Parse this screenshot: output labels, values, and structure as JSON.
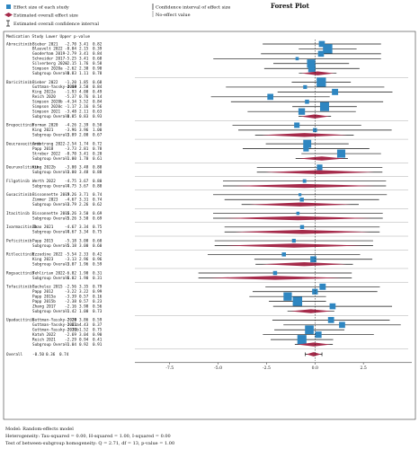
{
  "chart_data": {
    "type": "forest",
    "title": "Forest Plot",
    "legend": {
      "effect_size": "Effect size of each study",
      "overall_effect": "Estimated overall effect size",
      "overall_ci": "Estimated overall confidence interval",
      "ci": "Confidence interval of effect size",
      "no_effect": "No-effect value"
    },
    "header": "Medication  Study  Lower Upper p-value",
    "x_ticks": [
      -7.5,
      -5.0,
      -2.5,
      0.0,
      2.5
    ],
    "x_tick_labels": [
      "-7.5",
      "-5.0",
      "-2.5",
      "0.0",
      "2.5"
    ],
    "xlim": [
      -9.3,
      5.0
    ],
    "groups": [
      {
        "medication": "Abrocitinib",
        "rows": [
          {
            "study": "Bieber 2021",
            "lower": -2.7,
            "upper": 3.41,
            "p": 0.82
          },
          {
            "study": "Blauvelt 2022",
            "lower": -0.84,
            "upper": 2.15,
            "p": 0.39
          },
          {
            "study": "Gooderham 2019",
            "lower": -2.79,
            "upper": 3.41,
            "p": 0.84
          },
          {
            "study": "Schneider 2017",
            "lower": -5.25,
            "upper": 3.41,
            "p": 0.68
          },
          {
            "study": "Silverberg 2020",
            "lower": -2.15,
            "upper": 1.76,
            "p": 0.58
          },
          {
            "study": "Simpson 2020a",
            "lower": -2.62,
            "upper": 2.3,
            "p": 0.9
          }
        ],
        "overall": {
          "lower": -0.83,
          "upper": 1.11,
          "p": 0.78
        }
      },
      {
        "medication": "Baricitinib",
        "rows": [
          {
            "study": "Bieber 2022",
            "lower": -1.2,
            "upper": 1.85,
            "p": 0.68
          },
          {
            "study": "Guttman-Yassky 2019",
            "lower": -4.6,
            "upper": 3.58,
            "p": 0.84
          },
          {
            "study": "King 2022a",
            "lower": -1.93,
            "upper": 4.0,
            "p": 0.49
          },
          {
            "study": "Reich 2020",
            "lower": -5.37,
            "upper": 0.76,
            "p": 0.14
          },
          {
            "study": "Simpson 2020b",
            "lower": -4.34,
            "upper": 3.52,
            "p": 0.84
          },
          {
            "study": "Simpson 2020c",
            "lower": -1.17,
            "upper": 2.16,
            "p": 0.56
          },
          {
            "study": "Simpson 2021",
            "lower": -3.48,
            "upper": 2.11,
            "p": 0.63
          }
        ],
        "overall": {
          "lower": -0.85,
          "upper": 0.83,
          "p": 0.93
        }
      },
      {
        "medication": "Brepocitinib",
        "rows": [
          {
            "study": "Forman 2020",
            "lower": -4.26,
            "upper": 2.39,
            "p": 0.58
          },
          {
            "study": "King 2021",
            "lower": -3.96,
            "upper": 3.96,
            "p": 1.0
          }
        ],
        "overall": {
          "lower": -3.09,
          "upper": 2.0,
          "p": 0.67
        }
      },
      {
        "medication": "Deucravacitinib",
        "rows": [
          {
            "study": "Armstrong 2022",
            "lower": -2.54,
            "upper": 1.74,
            "p": 0.72
          },
          {
            "study": "Papp 2018",
            "lower": -3.73,
            "upper": 2.81,
            "p": 0.78
          },
          {
            "study": "Strober 2022",
            "lower": -0.7,
            "upper": 3.41,
            "p": 0.2
          }
        ],
        "overall": {
          "lower": -1.0,
          "upper": 1.7,
          "p": 0.61
        }
      },
      {
        "medication": "Deuruxolitinib",
        "rows": [
          {
            "study": "King 2022b",
            "lower": -3.0,
            "upper": 3.48,
            "p": 0.88
          }
        ],
        "overall": {
          "lower": -3.0,
          "upper": 3.48,
          "p": 0.88
        }
      },
      {
        "medication": "Filgotinib",
        "rows": [
          {
            "study": "Werth 2022",
            "lower": -4.75,
            "upper": 3.67,
            "p": 0.8
          }
        ],
        "overall": {
          "lower": -4.75,
          "upper": 3.67,
          "p": 0.8
        }
      },
      {
        "medication": "Gusacitinib",
        "rows": [
          {
            "study": "Bissonnette 2019",
            "lower": -5.26,
            "upper": 3.71,
            "p": 0.74
          },
          {
            "study": "Zimmer 2023",
            "lower": -4.67,
            "upper": 3.31,
            "p": 0.74
          }
        ],
        "overall": {
          "lower": -3.79,
          "upper": 2.26,
          "p": 0.62
        }
      },
      {
        "medication": "Itacitinib",
        "rows": [
          {
            "study": "Bissonnette 2016",
            "lower": -5.26,
            "upper": 3.5,
            "p": 0.69
          }
        ],
        "overall": {
          "lower": -5.26,
          "upper": 3.5,
          "p": 0.69
        }
      },
      {
        "medication": "Ivarmacitinib",
        "rows": [
          {
            "study": "Zhao 2021",
            "lower": -4.67,
            "upper": 3.34,
            "p": 0.75
          }
        ],
        "overall": {
          "lower": -4.67,
          "upper": 3.34,
          "p": 0.75
        }
      },
      {
        "medication": "Peficitinib",
        "rows": [
          {
            "study": "Papp 2015",
            "lower": -5.18,
            "upper": 3.0,
            "p": 0.6
          }
        ],
        "overall": {
          "lower": -5.18,
          "upper": 3.0,
          "p": 0.6
        }
      },
      {
        "medication": "Ritlecitinib",
        "rows": [
          {
            "study": "Ezzedine 2022",
            "lower": -5.54,
            "upper": 2.33,
            "p": 0.42
          },
          {
            "study": "King 2023",
            "lower": -3.13,
            "upper": 2.96,
            "p": 0.96
          }
        ],
        "overall": {
          "lower": -3.07,
          "upper": 1.96,
          "p": 0.59
        }
      },
      {
        "medication": "Rogsacitinib",
        "rows": [
          {
            "study": "Tehlirian 2022",
            "lower": -6.02,
            "upper": 1.9,
            "p": 0.31
          }
        ],
        "overall": {
          "lower": -6.02,
          "upper": 1.9,
          "p": 0.31
        }
      },
      {
        "medication": "Tofacitinib",
        "rows": [
          {
            "study": "Bachelez 2015",
            "lower": -2.56,
            "upper": 3.35,
            "p": 0.79
          },
          {
            "study": "Papp 2012",
            "lower": -3.22,
            "upper": 3.22,
            "p": 0.99
          },
          {
            "study": "Papp 2015a",
            "lower": -3.39,
            "upper": 0.57,
            "p": 0.16
          },
          {
            "study": "Papp 2015b",
            "lower": -2.38,
            "upper": 0.57,
            "p": 0.23
          },
          {
            "study": "Zhang 2017",
            "lower": -2.16,
            "upper": 3.98,
            "p": 0.56
          }
        ],
        "overall": {
          "lower": -1.42,
          "upper": 1.0,
          "p": 0.73
        }
      },
      {
        "medication": "Upadacitinib",
        "rows": [
          {
            "study": "Guttman-Yassky 2020",
            "lower": -2.2,
            "upper": 3.86,
            "p": 0.59
          },
          {
            "study": "Guttman-Yassky 2021a",
            "lower": -1.63,
            "upper": 4.43,
            "p": 0.37
          },
          {
            "study": "Guttman-Yassky 2021b",
            "lower": -2.1,
            "upper": 1.52,
            "p": 0.75
          },
          {
            "study": "Katoh 2022",
            "lower": -2.69,
            "upper": 3.04,
            "p": 0.9
          },
          {
            "study": "Reich 2021",
            "lower": -2.29,
            "upper": 0.94,
            "p": 0.41
          }
        ],
        "overall": {
          "lower": -1.04,
          "upper": 0.92,
          "p": 0.91
        }
      }
    ],
    "overall": {
      "label": "Overall",
      "lower": -0.5,
      "upper": 0.36,
      "p": 0.74
    },
    "footnotes": [
      "Model: Random-effects model",
      "Heterogeneity: Tau-squared = 0.00, H-squared = 1.00, I-squared = 0.00",
      "Test of between-subgroup homogeneity: Q = 2.71, df = 13, p-value = 1.00"
    ],
    "colors": {
      "study_marker": "#2E86C1",
      "diamond": "#A52A4A",
      "line": "#111111"
    }
  }
}
